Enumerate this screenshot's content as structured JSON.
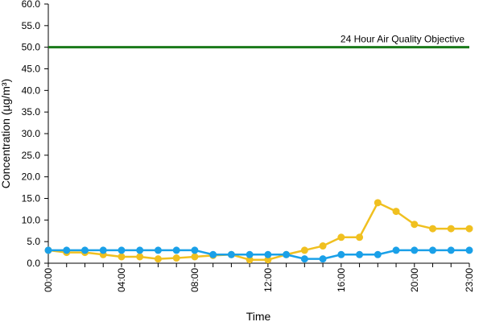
{
  "chart_data": {
    "type": "line",
    "title": "",
    "xlabel": "Time",
    "ylabel": "Concentration (µg/m³)",
    "ylim": [
      0,
      60
    ],
    "yticks": [
      0,
      5,
      10,
      15,
      20,
      25,
      30,
      35,
      40,
      45,
      50,
      55,
      60
    ],
    "ytick_labels": [
      "0.0",
      "5.0",
      "10.0",
      "15.0",
      "20.0",
      "25.0",
      "30.0",
      "35.0",
      "40.0",
      "45.0",
      "50.0",
      "55.0",
      "60.0"
    ],
    "x": [
      0,
      1,
      2,
      3,
      4,
      5,
      6,
      7,
      8,
      9,
      10,
      11,
      12,
      13,
      14,
      15,
      16,
      17,
      18,
      19,
      20,
      21,
      22,
      23
    ],
    "xlim": [
      0,
      23
    ],
    "xticks": [
      0,
      4,
      8,
      12,
      16,
      20,
      23
    ],
    "xtick_labels": [
      "00:00",
      "04:00",
      "08:00",
      "12:00",
      "16:00",
      "20:00",
      "23:00"
    ],
    "grid": false,
    "legend": "none",
    "objective_line": {
      "value": 50,
      "label": "24 Hour Air Quality Objective",
      "color": "#1a7a1a"
    },
    "series": [
      {
        "color": "#f0c020",
        "values": [
          3,
          2.5,
          2.5,
          2,
          1.5,
          1.5,
          1,
          1.2,
          1.5,
          1.8,
          2,
          0.8,
          0.8,
          2,
          3,
          4,
          6,
          6,
          14,
          12,
          9,
          8,
          8,
          8
        ]
      },
      {
        "color": "#1aa0e8",
        "values": [
          3,
          3,
          3,
          3,
          3,
          3,
          3,
          3,
          3,
          2,
          2,
          2,
          2,
          2,
          1,
          1,
          2,
          2,
          2,
          3,
          3,
          3,
          3,
          3
        ]
      }
    ]
  }
}
